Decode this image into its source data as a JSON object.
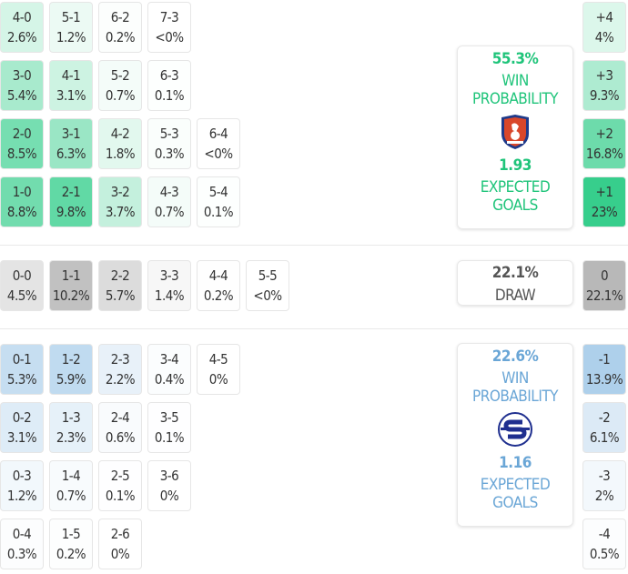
{
  "colors": {
    "home": "#2ecc87",
    "home_text": "#1fc47a",
    "draw": "#9e9e9e",
    "away": "#7fb5e0",
    "away_text": "#6aa6d6"
  },
  "home": {
    "rows": [
      [
        [
          "4-0",
          "2.6%"
        ],
        [
          "5-1",
          "1.2%"
        ],
        [
          "6-2",
          "0.2%"
        ],
        [
          "7-3",
          "<0%"
        ]
      ],
      [
        [
          "3-0",
          "5.4%"
        ],
        [
          "4-1",
          "3.1%"
        ],
        [
          "5-2",
          "0.7%"
        ],
        [
          "6-3",
          "0.1%"
        ]
      ],
      [
        [
          "2-0",
          "8.5%"
        ],
        [
          "3-1",
          "6.3%"
        ],
        [
          "4-2",
          "1.8%"
        ],
        [
          "5-3",
          "0.3%"
        ],
        [
          "6-4",
          "<0%"
        ]
      ],
      [
        [
          "1-0",
          "8.8%"
        ],
        [
          "2-1",
          "9.8%"
        ],
        [
          "3-2",
          "3.7%"
        ],
        [
          "4-3",
          "0.7%"
        ],
        [
          "5-4",
          "0.1%"
        ]
      ]
    ],
    "margins": [
      [
        "+4",
        "4%"
      ],
      [
        "+3",
        "9.3%"
      ],
      [
        "+2",
        "16.8%"
      ],
      [
        "+1",
        "23%"
      ]
    ],
    "win_pct": "55.3%",
    "win_label": "WIN PROBABILITY",
    "xg": "1.93",
    "xg_label": "EXPECTED GOALS",
    "logo": "shield-crest"
  },
  "draw": {
    "row": [
      [
        "0-0",
        "4.5%"
      ],
      [
        "1-1",
        "10.2%"
      ],
      [
        "2-2",
        "5.7%"
      ],
      [
        "3-3",
        "1.4%"
      ],
      [
        "4-4",
        "0.2%"
      ],
      [
        "5-5",
        "<0%"
      ]
    ],
    "margin": [
      "0",
      "22.1%"
    ],
    "pct": "22.1%",
    "label": "DRAW"
  },
  "away": {
    "rows": [
      [
        [
          "0-1",
          "5.3%"
        ],
        [
          "1-2",
          "5.9%"
        ],
        [
          "2-3",
          "2.2%"
        ],
        [
          "3-4",
          "0.4%"
        ],
        [
          "4-5",
          "0%"
        ]
      ],
      [
        [
          "0-2",
          "3.1%"
        ],
        [
          "1-3",
          "2.3%"
        ],
        [
          "2-4",
          "0.6%"
        ],
        [
          "3-5",
          "0.1%"
        ]
      ],
      [
        [
          "0-3",
          "1.2%"
        ],
        [
          "1-4",
          "0.7%"
        ],
        [
          "2-5",
          "0.1%"
        ],
        [
          "3-6",
          "0%"
        ]
      ],
      [
        [
          "0-4",
          "0.3%"
        ],
        [
          "1-5",
          "0.2%"
        ],
        [
          "2-6",
          "0%"
        ]
      ]
    ],
    "margins": [
      [
        "-1",
        "13.9%"
      ],
      [
        "-2",
        "6.1%"
      ],
      [
        "-3",
        "2%"
      ],
      [
        "-4",
        "0.5%"
      ]
    ],
    "win_pct": "22.6%",
    "win_label": "WIN PROBABILITY",
    "xg": "1.16",
    "xg_label": "EXPECTED GOALS",
    "logo": "circle-s-crest"
  }
}
